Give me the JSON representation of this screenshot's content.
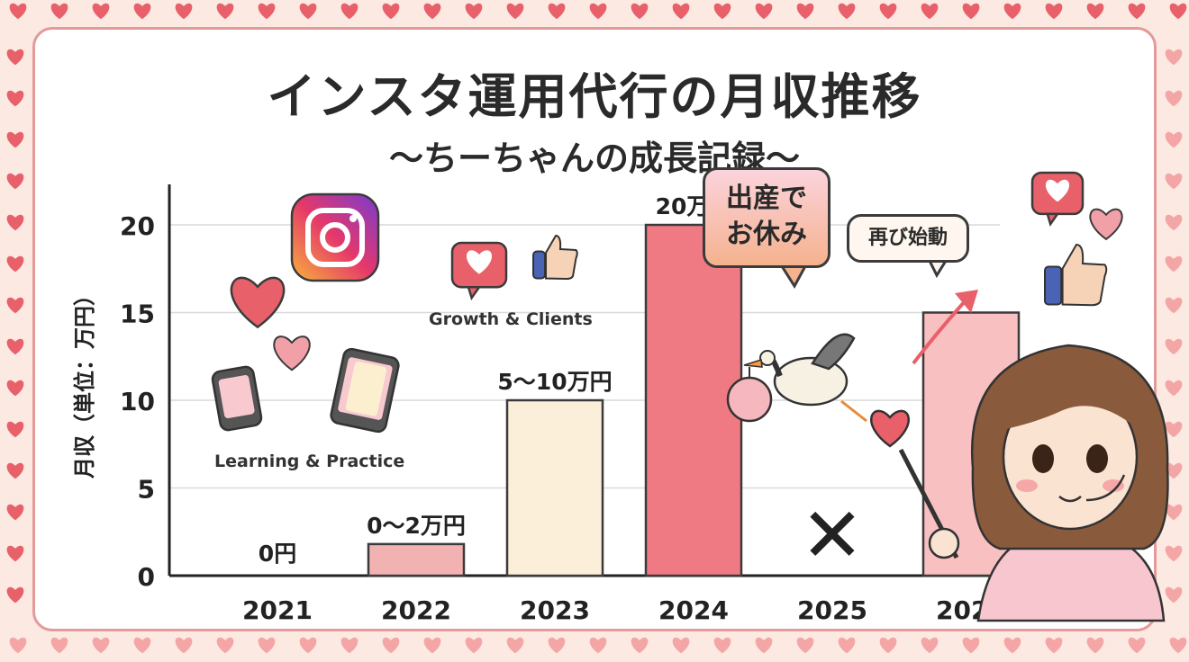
{
  "title": "インスタ運用代行の月収推移",
  "subtitle": "〜ちーちゃんの成長記録〜",
  "chart_data": {
    "type": "bar",
    "categories": [
      "2021",
      "2022",
      "2023",
      "2024",
      "2025",
      "2026"
    ],
    "values": [
      0,
      1.8,
      10,
      20,
      0,
      15
    ],
    "value_labels": [
      "0円",
      "0〜2万円",
      "5〜10万円",
      "20万円",
      "",
      ""
    ],
    "bar_colors": [
      "#f3b2b2",
      "#f3b2b2",
      "#fbefd9",
      "#f07a84",
      "#f3b2b2",
      "#f8c0c0"
    ],
    "ylabel": "月収（単位：万円）",
    "xlabel": "",
    "ylim": [
      0,
      20
    ],
    "yticks": [
      0,
      5,
      10,
      15,
      20
    ],
    "grid": true,
    "annotations": {
      "learning": "Learning & Practice",
      "growth": "Growth & Clients",
      "maternity": "出産で\nお休み",
      "restart": "再び始動",
      "missing_mark": "✕"
    }
  },
  "colors": {
    "background": "#fbe9e2",
    "border": "#e39a9a",
    "heart": "#e8606a"
  }
}
